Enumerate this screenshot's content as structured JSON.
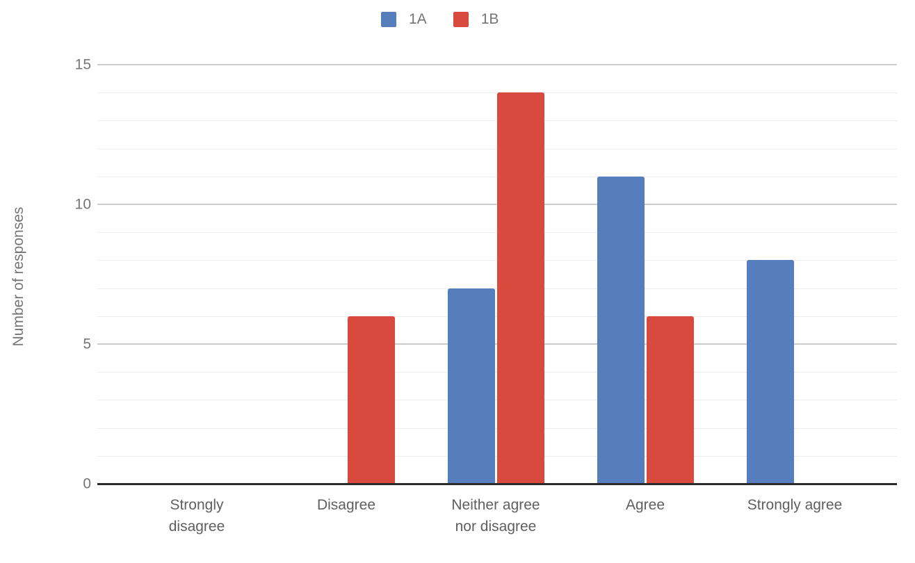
{
  "chart_data": {
    "type": "bar",
    "title": "",
    "categories": [
      "Strongly disagree",
      "Disagree",
      "Neither agree nor disagree",
      "Agree",
      "Strongly agree"
    ],
    "series": [
      {
        "name": "1A",
        "color": "#567ebd",
        "values": [
          0,
          0,
          7,
          11,
          8
        ]
      },
      {
        "name": "1B",
        "color": "#d8493e",
        "values": [
          0,
          6,
          14,
          6,
          0
        ]
      }
    ],
    "xlabel": "",
    "ylabel": "Number of responses",
    "ylim": [
      0,
      15
    ],
    "yticks": [
      0,
      5,
      10,
      15
    ],
    "minor_gridline_unit": 1,
    "grid": true,
    "legend_position": "top"
  }
}
